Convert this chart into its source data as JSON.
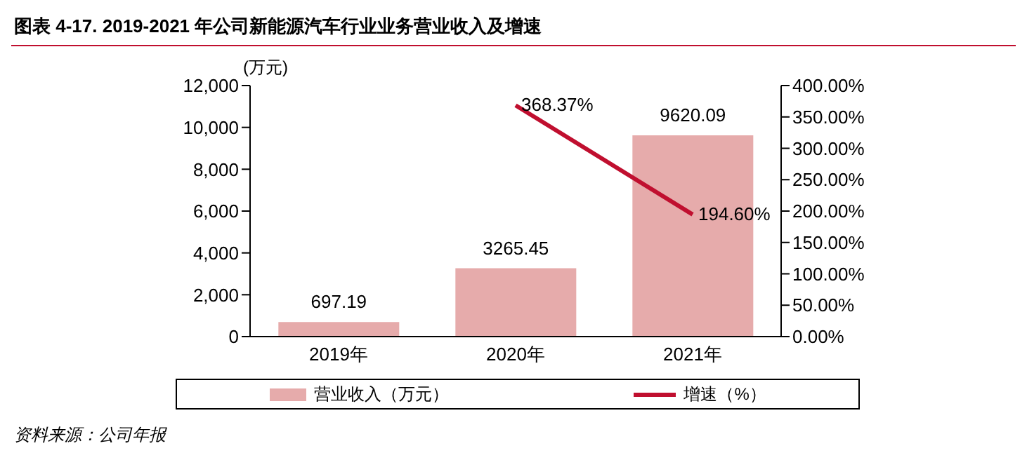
{
  "chart_data": {
    "type": "bar",
    "title": "图表 4-17. 2019-2021 年公司新能源汽车行业业务营业收入及增速",
    "ylabel": "(万元)",
    "categories": [
      "2019年",
      "2020年",
      "2021年"
    ],
    "series": [
      {
        "name": "营业收入（万元）",
        "color": "#e6abab",
        "values": [
          697.19,
          3265.45,
          9620.09
        ],
        "value_labels": [
          "697.19",
          "3265.45",
          "9620.09"
        ]
      },
      {
        "name": "增速（%）",
        "type": "line",
        "axis": "y2",
        "color": "#c00f2f",
        "values": [
          null,
          368.37,
          194.6
        ],
        "value_labels": [
          null,
          "368.37%",
          "194.60%"
        ]
      }
    ],
    "ylim": [
      0,
      12000
    ],
    "yticks": [
      0,
      {
        "value": 2000,
        "label": "2,000"
      },
      {
        "value": 4000,
        "label": "4,000"
      },
      {
        "value": 6000,
        "label": "6,000"
      },
      {
        "value": 8000,
        "label": "8,000"
      },
      {
        "value": 10000,
        "label": "10,000"
      },
      {
        "value": 12000,
        "label": "12,000"
      }
    ],
    "y2lim": [
      0,
      400
    ],
    "y2ticks": [
      {
        "value": 0,
        "label": "0.00%"
      },
      {
        "value": 50,
        "label": "50.00%"
      },
      {
        "value": 100,
        "label": "100.00%"
      },
      {
        "value": 150,
        "label": "150.00%"
      },
      {
        "value": 200,
        "label": "200.00%"
      },
      {
        "value": 250,
        "label": "250.00%"
      },
      {
        "value": 300,
        "label": "300.00%"
      },
      {
        "value": 350,
        "label": "350.00%"
      },
      {
        "value": 400,
        "label": "400.00%"
      }
    ],
    "legend": "bottom",
    "marker": "none",
    "annotations": [
      "资料来源：公司年报"
    ]
  }
}
